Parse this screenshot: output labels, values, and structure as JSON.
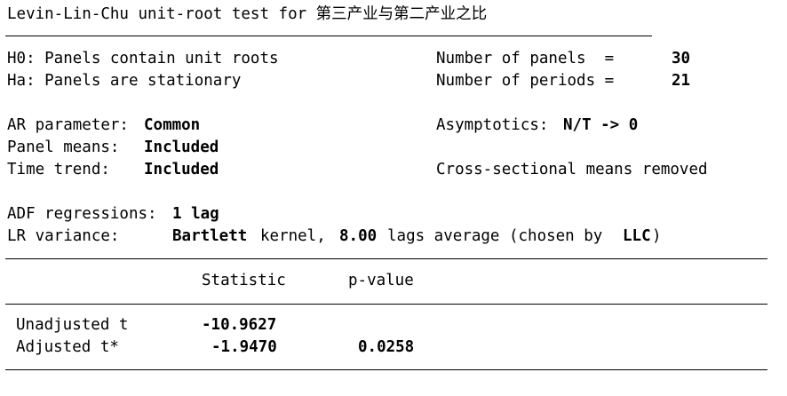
{
  "title": "Levin-Lin-Chu unit-root test for 第三产业与第二产业之比",
  "hypotheses": {
    "h0": "H0: Panels contain unit roots",
    "ha": "Ha: Panels are stationary"
  },
  "dimensions": {
    "panels_label": "Number of panels  =",
    "panels_value": "30",
    "periods_label": "Number of periods =",
    "periods_value": "21"
  },
  "settings": {
    "ar_label": "AR parameter:",
    "ar_value": "Common",
    "means_label": "Panel means:",
    "means_value": "Included",
    "trend_label": "Time trend:",
    "trend_value": "Included",
    "asym_label": "Asymptotics:",
    "asym_value": "N/T -> 0",
    "cross_sectional": "Cross-sectional means removed"
  },
  "regression": {
    "adf_label": "ADF regressions:",
    "adf_value": "1 lag",
    "lr_label": "LR variance:",
    "lr_kernel": "Bartlett",
    "lr_kernel_text": "kernel,",
    "lr_lags": "8.00",
    "lr_lags_text": "lags average (chosen by",
    "lr_method": "LLC",
    "lr_close": ")"
  },
  "table": {
    "headers": [
      "Statistic",
      "p-value"
    ],
    "rows": [
      {
        "label": "Unadjusted t",
        "statistic": "-10.9627",
        "pvalue": ""
      },
      {
        "label": "Adjusted t*",
        "statistic": "-1.9470",
        "pvalue": "0.0258"
      }
    ]
  }
}
